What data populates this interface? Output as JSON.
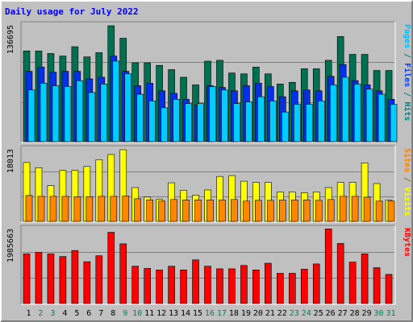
{
  "chart_data": {
    "title": "Daily usage for July 2022",
    "type": "bar",
    "days": [
      "1",
      "2",
      "3",
      "4",
      "5",
      "6",
      "7",
      "8",
      "9",
      "10",
      "11",
      "12",
      "13",
      "14",
      "15",
      "16",
      "17",
      "18",
      "19",
      "20",
      "21",
      "22",
      "23",
      "24",
      "25",
      "26",
      "27",
      "28",
      "29",
      "30",
      "31"
    ],
    "weekend_days": [
      "2",
      "3",
      "9",
      "10",
      "16",
      "17",
      "23",
      "24",
      "30",
      "31"
    ],
    "panels": [
      {
        "scale_label": "136695",
        "ymax": 136695,
        "legend": [
          {
            "text": "Pages",
            "color": "#00c0ff"
          },
          {
            "text": " / ",
            "color": "#008080"
          },
          {
            "text": "Files",
            "color": "#0040ff"
          },
          {
            "text": " / ",
            "color": "#008080"
          },
          {
            "text": "Hits",
            "color": "#008080"
          }
        ],
        "series": [
          {
            "name": "Hits",
            "color": "#007050",
            "values": [
              107000,
              107000,
              104000,
              101000,
              112000,
              100000,
              105000,
              136695,
              122000,
              93000,
              93000,
              90000,
              85000,
              76000,
              67000,
              95000,
              96000,
              81000,
              80000,
              88000,
              80000,
              68000,
              70000,
              86000,
              86000,
              96000,
              124000,
              103000,
              103000,
              84000,
              84000
            ]
          },
          {
            "name": "Files",
            "color": "#0030e8",
            "values": [
              83000,
              88000,
              82000,
              83000,
              83000,
              74000,
              76000,
              101000,
              83000,
              66000,
              69000,
              60000,
              57000,
              50000,
              43000,
              66000,
              64000,
              60000,
              66000,
              69000,
              65000,
              53000,
              60000,
              61000,
              60000,
              77000,
              91000,
              72000,
              67000,
              60000,
              50000
            ]
          },
          {
            "name": "Pages",
            "color": "#00ccff",
            "values": [
              61000,
              69000,
              66000,
              65000,
              72000,
              58000,
              68000,
              95000,
              80000,
              56000,
              48000,
              40000,
              50000,
              45000,
              45000,
              65000,
              61000,
              45000,
              47000,
              53000,
              48000,
              35000,
              44000,
              44000,
              48000,
              67000,
              76000,
              68000,
              62000,
              56000,
              44000
            ]
          }
        ]
      },
      {
        "scale_label": "18013",
        "ymax": 18013,
        "legend": [
          {
            "text": "Sites",
            "color": "#ff8000"
          },
          {
            "text": " / ",
            "color": "#808000"
          },
          {
            "text": "Visits",
            "color": "#ffff00"
          }
        ],
        "series": [
          {
            "name": "Visits",
            "color": "#ffff00",
            "values": [
              14800,
              13500,
              9000,
              12800,
              12800,
              13800,
              15500,
              16800,
              18013,
              8500,
              6100,
              5500,
              9700,
              7800,
              6600,
              7900,
              11300,
              11500,
              10100,
              9800,
              9800,
              7400,
              7400,
              7200,
              7400,
              8500,
              9800,
              9800,
              14700,
              9500,
              5300
            ]
          },
          {
            "name": "Sites",
            "color": "#ff8800",
            "values": [
              6500,
              6300,
              6300,
              6300,
              6200,
              6200,
              6300,
              6300,
              6400,
              5700,
              5400,
              5100,
              5500,
              5400,
              5400,
              5400,
              5400,
              5500,
              5100,
              5300,
              5300,
              5400,
              5400,
              5400,
              5300,
              5500,
              6300,
              6300,
              6100,
              5100,
              5100
            ]
          }
        ]
      },
      {
        "scale_label": "1985663",
        "ymax": 1985663,
        "legend": [
          {
            "text": "KBytes",
            "color": "#ff0000"
          }
        ],
        "series": [
          {
            "name": "KBytes",
            "color": "#ff0000",
            "values": [
              1330000,
              1370000,
              1330000,
              1260000,
              1420000,
              1120000,
              1280000,
              1910000,
              1600000,
              1000000,
              940000,
              900000,
              1000000,
              900000,
              1170000,
              1000000,
              930000,
              930000,
              1020000,
              900000,
              1080000,
              810000,
              810000,
              920000,
              1060000,
              2000000,
              1610000,
              1110000,
              1330000,
              960000,
              780000
            ]
          }
        ]
      }
    ]
  }
}
